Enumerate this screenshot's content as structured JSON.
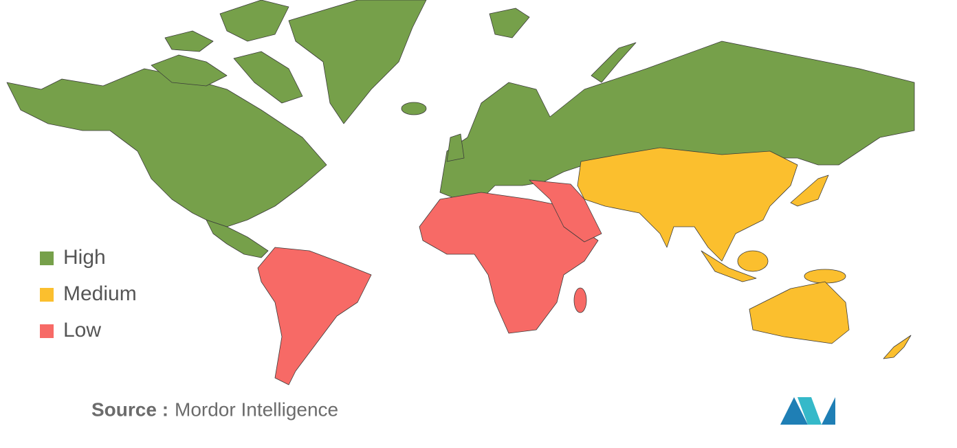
{
  "legend": {
    "items": [
      {
        "label": "High",
        "color": "#76a04a"
      },
      {
        "label": "Medium",
        "color": "#fbbf2e"
      },
      {
        "label": "Low",
        "color": "#f76a66"
      }
    ]
  },
  "source": {
    "label": "Source :",
    "text": "Mordor Intelligence"
  }
}
